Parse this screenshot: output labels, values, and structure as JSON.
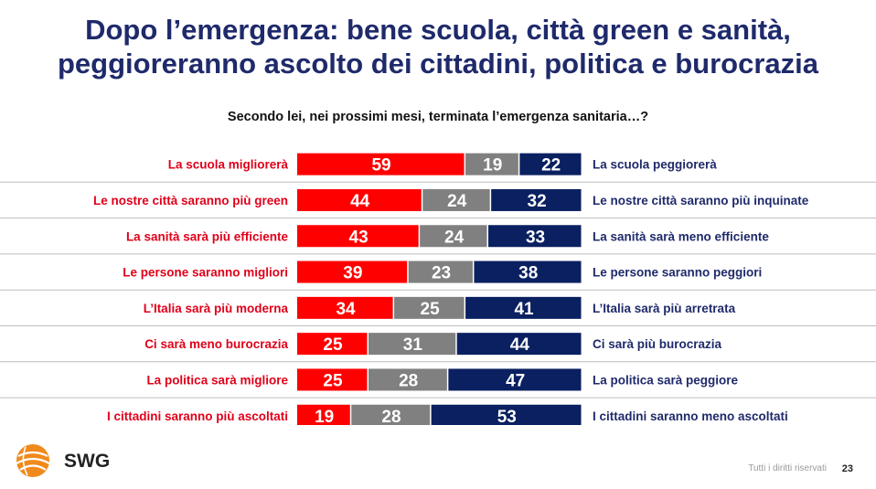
{
  "title_line1": "Dopo l’emergenza: bene scuola, città green e sanità,",
  "title_line2": "peggioreranno ascolto dei cittadini, politica e burocrazia",
  "subtitle": "Secondo lei, nei prossimi mesi, terminata l’emergenza sanitaria…?",
  "footer": {
    "rights": "Tutti i diritti riservati",
    "page": "23",
    "logo_text": "SWG"
  },
  "colors": {
    "positive": "#ff0000",
    "neutral": "#808080",
    "negative": "#0a2060",
    "left_label": "#e0001a",
    "right_label": "#1f2a6b"
  },
  "chart_data": {
    "type": "bar",
    "stacked": true,
    "orientation": "horizontal",
    "categories": [
      "La scuola migliorerà",
      "Le nostre città saranno più green",
      "La sanità sarà più efficiente",
      "Le persone saranno migliori",
      "L’Italia sarà più moderna",
      "Ci sarà meno burocrazia",
      "La politica sarà migliore",
      "I cittadini saranno più ascoltati"
    ],
    "right_labels": [
      "La scuola peggiorerà",
      "Le nostre città saranno più inquinate",
      "La sanità sarà meno efficiente",
      "Le persone saranno peggiori",
      "L’Italia sarà più arretrata",
      "Ci sarà più burocrazia",
      "La politica sarà peggiore",
      "I cittadini saranno meno ascoltati"
    ],
    "series": [
      {
        "values": [
          59,
          44,
          43,
          39,
          34,
          25,
          25,
          19
        ],
        "color": "#ff0000"
      },
      {
        "values": [
          19,
          24,
          24,
          23,
          25,
          31,
          28,
          28
        ],
        "color": "#808080"
      },
      {
        "values": [
          22,
          32,
          33,
          38,
          41,
          44,
          47,
          53
        ],
        "color": "#0a2060"
      }
    ],
    "xlim": [
      0,
      100
    ],
    "grid": false,
    "data_labels": true
  }
}
